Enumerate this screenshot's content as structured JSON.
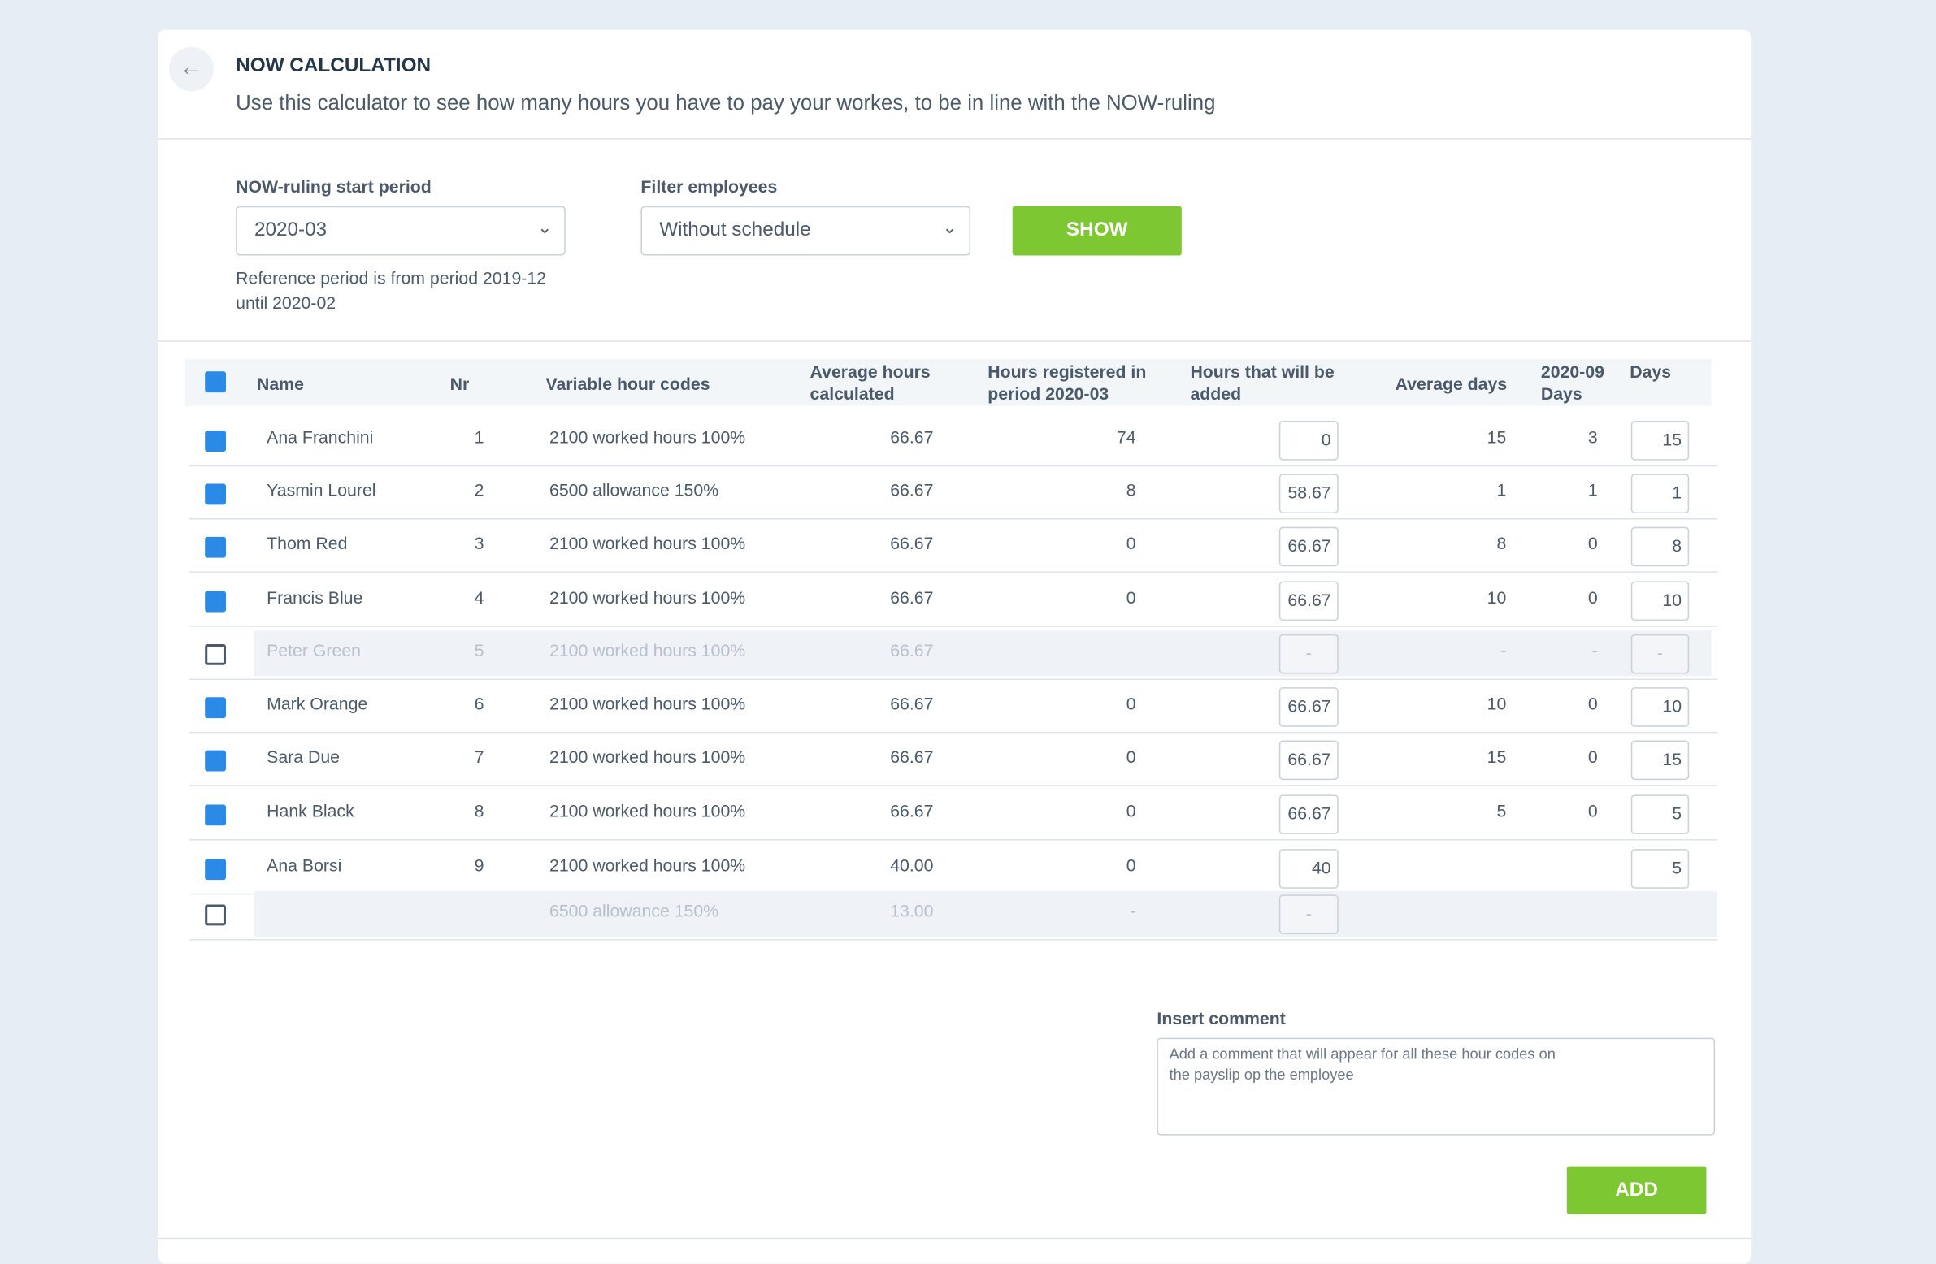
{
  "header": {
    "title": "NOW CALCULATION",
    "subtitle": "Use this calculator to see how many hours you have to pay your workes, to be in line with the NOW-ruling"
  },
  "filters": {
    "start_label": "NOW-ruling start period",
    "start_value": "2020-03",
    "reference_note": "Reference period is from period 2019-12 until 2020-02",
    "employees_label": "Filter employees",
    "employees_value": "Without schedule",
    "show_button": "SHOW"
  },
  "table": {
    "all_selected": true,
    "columns": [
      "Name",
      "Nr",
      "Variable hour codes",
      "Average hours calculated",
      "Hours registered in period 2020-03",
      "Hours that will be added",
      "Average days",
      "2020-09 Days",
      "Days"
    ],
    "rows": [
      {
        "selected": true,
        "disabled": false,
        "cells": [
          "Ana Franchini",
          "1",
          "2100 worked hours 100%",
          "66.67",
          "74",
          "0",
          "15",
          "3",
          "15"
        ]
      },
      {
        "selected": true,
        "disabled": false,
        "cells": [
          "Yasmin Lourel",
          "2",
          "6500 allowance 150%",
          "66.67",
          "8",
          "58.67",
          "1",
          "1",
          "1"
        ]
      },
      {
        "selected": true,
        "disabled": false,
        "cells": [
          "Thom Red",
          "3",
          "2100 worked hours 100%",
          "66.67",
          "0",
          "66.67",
          "8",
          "0",
          "8"
        ]
      },
      {
        "selected": true,
        "disabled": false,
        "cells": [
          "Francis Blue",
          "4",
          "2100 worked hours 100%",
          "66.67",
          "0",
          "66.67",
          "10",
          "0",
          "10"
        ]
      },
      {
        "selected": false,
        "disabled": true,
        "cells": [
          "Peter Green",
          "5",
          "2100 worked hours 100%",
          "66.67",
          null,
          "-",
          "-",
          "-",
          "-"
        ]
      },
      {
        "selected": true,
        "disabled": false,
        "cells": [
          "Mark Orange",
          "6",
          "2100 worked hours 100%",
          "66.67",
          "0",
          "66.67",
          "10",
          "0",
          "10"
        ]
      },
      {
        "selected": true,
        "disabled": false,
        "cells": [
          "Sara Due",
          "7",
          "2100 worked hours 100%",
          "66.67",
          "0",
          "66.67",
          "15",
          "0",
          "15"
        ]
      },
      {
        "selected": true,
        "disabled": false,
        "cells": [
          "Hank Black",
          "8",
          "2100 worked hours 100%",
          "66.67",
          "0",
          "66.67",
          "5",
          "0",
          "5"
        ]
      },
      {
        "selected": true,
        "disabled": false,
        "cells": [
          "Ana Borsi",
          "9",
          "2100 worked hours 100%",
          "40.00",
          "0",
          "40",
          null,
          null,
          "5"
        ]
      },
      {
        "selected": false,
        "disabled": true,
        "cells": [
          null,
          null,
          "6500 allowance 150%",
          "13.00",
          "-",
          "-",
          null,
          null,
          null
        ]
      }
    ]
  },
  "comment": {
    "label": "Insert comment",
    "placeholder": "Add a comment that will appear for all these hour codes on the payslip op the employee",
    "add_button": "ADD"
  }
}
